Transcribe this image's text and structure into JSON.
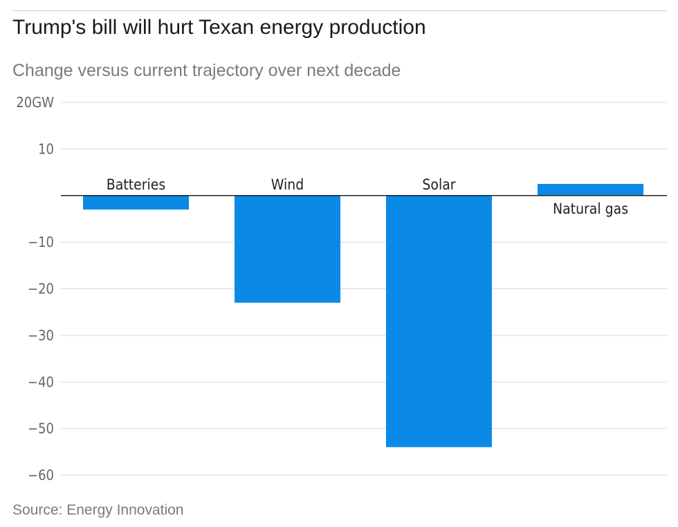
{
  "chart_data": {
    "type": "bar",
    "title": "Trump's bill will hurt Texan energy production",
    "subtitle": "Change versus current trajectory over next decade",
    "source": "Source: Energy Innovation",
    "categories": [
      "Batteries",
      "Wind",
      "Solar",
      "Natural gas"
    ],
    "values": [
      -3,
      -23,
      -54,
      2.5
    ],
    "unit": "GW",
    "ylim": [
      -60,
      20
    ],
    "yticks": [
      20,
      10,
      0,
      -10,
      -20,
      -30,
      -40,
      -50,
      -60
    ],
    "ytick_labels": [
      "20GW",
      "10",
      "",
      "−10",
      "−20",
      "−30",
      "−40",
      "−50",
      "−60"
    ],
    "grid": true,
    "colors": {
      "bar": "#0a8ae6",
      "grid": "#d9d9d9",
      "zero_line": "#222222",
      "tick_text": "#666666",
      "category_text": "#222222"
    }
  }
}
